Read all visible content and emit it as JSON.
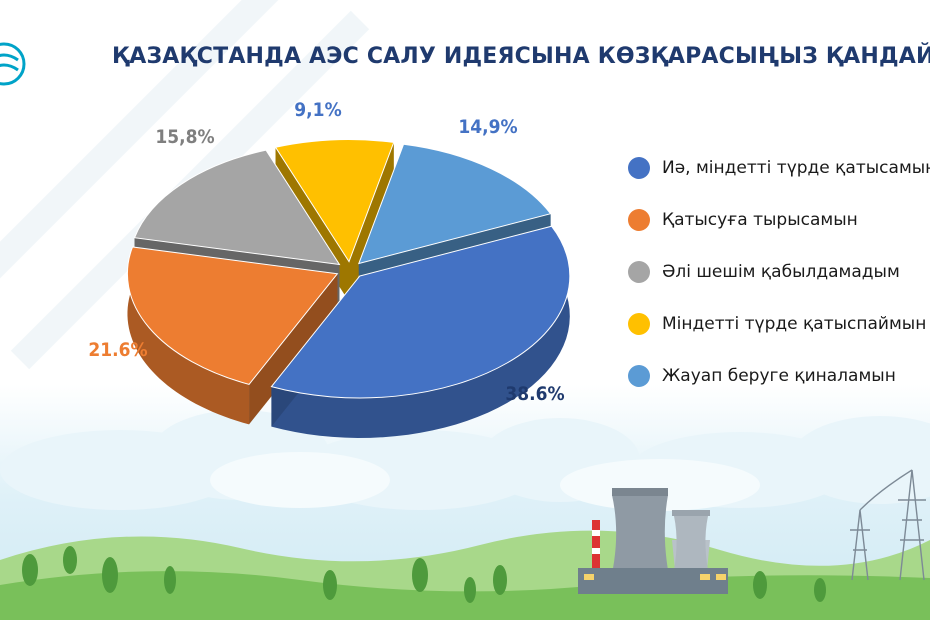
{
  "chart_data": {
    "type": "pie",
    "title": "ҚАЗАҚСТАНДА АЭС САЛУ ИДЕЯСЫНА КӨЗҚАРАСЫҢЫЗ ҚАНДАЙ?",
    "categories": [
      "Иә, міндетті түрде қатысамын",
      "Қатысуға тырысамын",
      "Әлі шешім қабылдамадым",
      "Міндетті түрде қатыспаймын",
      "Жауап беруге қиналамын"
    ],
    "values": [
      38.6,
      21.6,
      15.8,
      9.1,
      14.9
    ],
    "value_labels": [
      "38.6%",
      "21.6%",
      "15,8%",
      "9,1%",
      "14,9%"
    ],
    "colors": [
      "#4472c4",
      "#ed7d31",
      "#a5a5a5",
      "#ffc000",
      "#5b9bd5"
    ],
    "label_colors": [
      "#1f3a6e",
      "#ed7d31",
      "#7f7f7f",
      "#4472c4",
      "#4472c4"
    ],
    "legend_position": "right",
    "exploded": true,
    "style": "3d"
  }
}
